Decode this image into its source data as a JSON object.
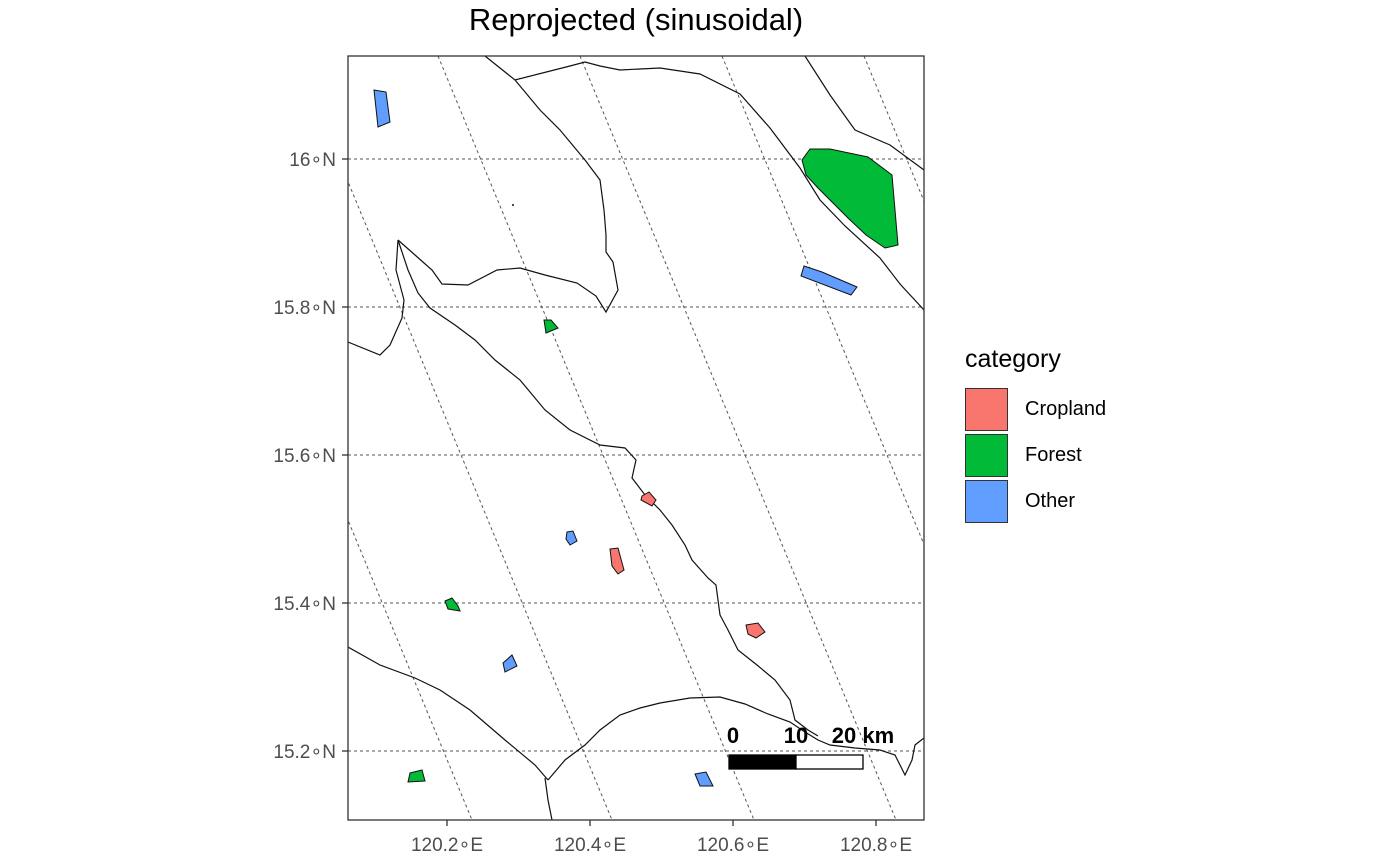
{
  "map": {
    "title": "Reprojected (sinusoidal)",
    "x_axis": {
      "ticks": [
        "120.2∘E",
        "120.4∘E",
        "120.6∘E",
        "120.8∘E"
      ]
    },
    "y_axis": {
      "ticks": [
        "16∘N",
        "15.8∘N",
        "15.6∘N",
        "15.4∘N",
        "15.2∘N"
      ]
    },
    "legend": {
      "title": "category",
      "items": [
        {
          "label": "Cropland",
          "color": "#F8766D"
        },
        {
          "label": "Forest",
          "color": "#00BA38"
        },
        {
          "label": "Other",
          "color": "#619CFF"
        }
      ]
    },
    "scale_bar": {
      "labels": [
        "0",
        "10",
        "20 km"
      ]
    },
    "colors": {
      "cropland": "#F8766D",
      "forest": "#00BA38",
      "other": "#619CFF",
      "graticule": "#555555"
    }
  }
}
